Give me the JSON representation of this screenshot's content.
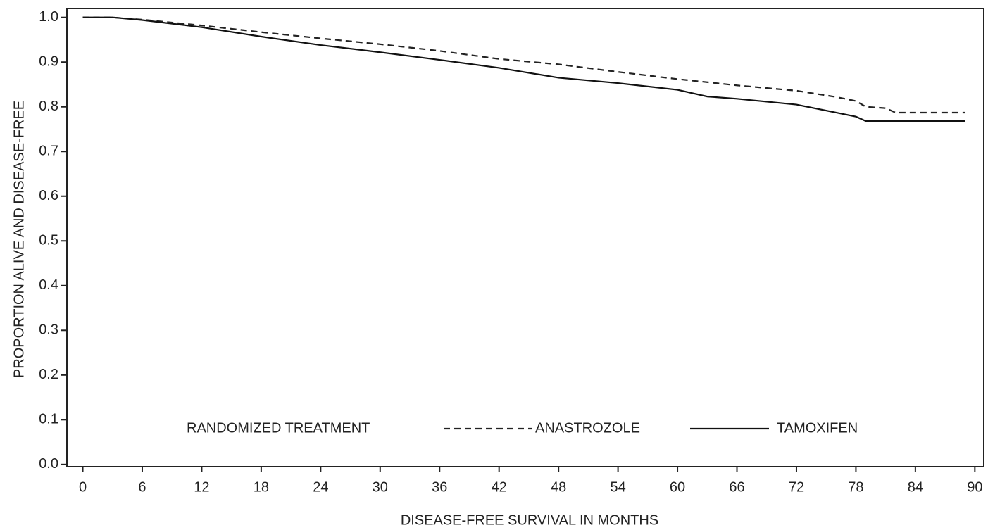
{
  "chart_data": {
    "type": "line",
    "x_label": "DISEASE-FREE SURVIVAL IN MONTHS",
    "y_label": "PROPORTION ALIVE AND DISEASE-FREE",
    "legend_title": "RANDOMIZED TREATMENT",
    "xlim": [
      -1.6,
      90.9
    ],
    "ylim": [
      -0.005,
      1.02
    ],
    "xticks": [
      0,
      6,
      12,
      18,
      24,
      30,
      36,
      42,
      48,
      54,
      60,
      66,
      72,
      78,
      84,
      90
    ],
    "yticks": [
      {
        "value": 0,
        "label": "0.0"
      },
      0.1,
      0.2,
      0.3,
      0.4,
      0.5,
      0.6,
      0.7,
      0.8,
      0.9,
      {
        "value": 1,
        "label": "1.0"
      }
    ],
    "grid": false,
    "series": [
      {
        "name": "ANASTROZOLE",
        "color": "#222222",
        "dash": "dashed",
        "x": [
          0,
          3,
          6,
          12,
          18,
          24,
          30,
          36,
          42,
          48,
          54,
          60,
          66,
          72,
          76,
          78,
          79,
          81,
          82,
          89
        ],
        "values": [
          1,
          1,
          0.995,
          0.982,
          0.967,
          0.953,
          0.94,
          0.925,
          0.907,
          0.895,
          0.878,
          0.862,
          0.848,
          0.836,
          0.822,
          0.813,
          0.8,
          0.797,
          0.787,
          0.787
        ]
      },
      {
        "name": "TAMOXIFEN",
        "color": "#111111",
        "dash": "solid",
        "x": [
          0,
          3,
          6,
          12,
          18,
          24,
          30,
          36,
          42,
          48,
          54,
          60,
          63,
          66,
          72,
          76,
          78,
          79,
          89
        ],
        "values": [
          1,
          1,
          0.994,
          0.978,
          0.957,
          0.938,
          0.922,
          0.905,
          0.887,
          0.865,
          0.853,
          0.838,
          0.823,
          0.818,
          0.805,
          0.787,
          0.778,
          0.768,
          0.768
        ]
      }
    ]
  }
}
